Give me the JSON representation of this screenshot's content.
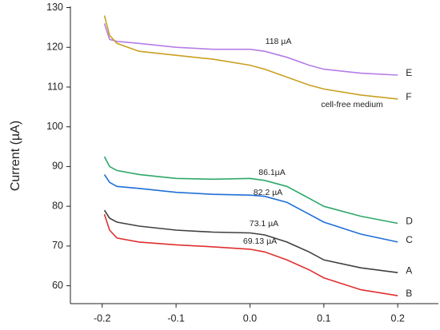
{
  "chart_data": {
    "type": "line",
    "ylabel": "Current (µA)",
    "xlim": [
      -0.243,
      0.255
    ],
    "ylim": [
      55.5,
      130.3
    ],
    "xticks": [
      -0.2,
      -0.1,
      {
        "value": 0,
        "label": "0.0"
      },
      0.1,
      0.2
    ],
    "yticks": [
      60,
      70,
      80,
      90,
      100,
      110,
      120,
      130
    ],
    "x": [
      -0.197,
      -0.19,
      -0.18,
      -0.15,
      -0.1,
      -0.05,
      0,
      0.02,
      0.05,
      0.08,
      0.1,
      0.15,
      0.2
    ],
    "series": [
      {
        "name": "E",
        "color": "#b57de6",
        "values": [
          126,
          122,
          121.5,
          121,
          120,
          119.5,
          119.5,
          119,
          117.5,
          115.5,
          114.5,
          113.5,
          113
        ]
      },
      {
        "name": "F",
        "color": "#c9a020",
        "values": [
          128,
          123,
          121,
          119,
          118,
          117,
          115.5,
          114.5,
          112.5,
          110.5,
          109.5,
          108,
          107
        ]
      },
      {
        "name": "D",
        "color": "#2fa86a",
        "values": [
          92.5,
          90,
          89,
          88,
          87,
          86.8,
          87,
          86.5,
          85,
          82,
          80,
          77.5,
          75.7
        ]
      },
      {
        "name": "C",
        "color": "#1f6fd6",
        "values": [
          88,
          86,
          85,
          84.5,
          83.5,
          83,
          82.8,
          82.5,
          81,
          78,
          76,
          73,
          71
        ]
      },
      {
        "name": "A",
        "color": "#404040",
        "values": [
          79,
          77,
          76,
          75,
          74,
          73.5,
          73.3,
          72.8,
          71,
          68.5,
          66.5,
          64.5,
          63.3
        ]
      },
      {
        "name": "B",
        "color": "#e03030",
        "values": [
          78,
          74,
          72,
          71,
          70.3,
          69.8,
          69.2,
          68.5,
          66.5,
          64,
          62,
          59,
          57.5
        ]
      }
    ],
    "annotations": [
      "118 µA",
      "cell-free medium",
      "86.1µA",
      "82.2 µA",
      "73.1 µA",
      "69.13 µA"
    ]
  }
}
